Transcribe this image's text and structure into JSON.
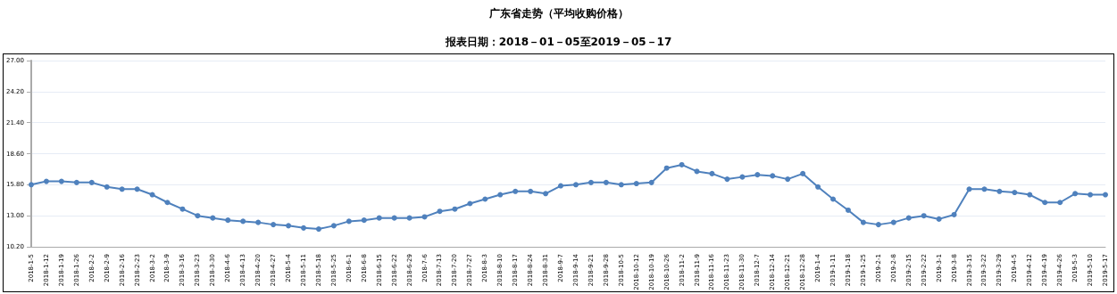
{
  "chart_data": {
    "type": "line",
    "title": "广东省走势（平均收购价格）",
    "subtitle": "报表日期：2018－01－05至2019－05－17",
    "categories": [
      "2018-1-5",
      "2018-1-12",
      "2018-1-19",
      "2018-1-26",
      "2018-2-2",
      "2018-2-9",
      "2018-2-16",
      "2018-2-23",
      "2018-3-2",
      "2018-3-9",
      "2018-3-16",
      "2018-3-23",
      "2018-3-30",
      "2018-4-6",
      "2018-4-13",
      "2018-4-20",
      "2018-4-27",
      "2018-5-4",
      "2018-5-11",
      "2018-5-18",
      "2018-5-25",
      "2018-6-1",
      "2018-6-8",
      "2018-6-15",
      "2018-6-22",
      "2018-6-29",
      "2018-7-6",
      "2018-7-13",
      "2018-7-20",
      "2018-7-27",
      "2018-8-3",
      "2018-8-10",
      "2018-8-17",
      "2018-8-24",
      "2018-8-31",
      "2018-9-7",
      "2018-9-14",
      "2018-9-21",
      "2018-9-28",
      "2018-10-5",
      "2018-10-12",
      "2018-10-19",
      "2018-10-26",
      "2018-11-2",
      "2018-11-9",
      "2018-11-16",
      "2018-11-23",
      "2018-11-30",
      "2018-12-7",
      "2018-12-14",
      "2018-12-21",
      "2018-12-28",
      "2019-1-4",
      "2019-1-11",
      "2019-1-18",
      "2019-1-25",
      "2019-2-1",
      "2019-2-8",
      "2019-2-15",
      "2019-2-22",
      "2019-3-1",
      "2019-3-8",
      "2019-3-15",
      "2019-3-22",
      "2019-3-29",
      "2019-4-5",
      "2019-4-12",
      "2019-4-19",
      "2019-4-26",
      "2019-5-3",
      "2019-5-10",
      "2019-5-17"
    ],
    "series": [
      {
        "color": "#4f81bd",
        "values": [
          15.8,
          16.1,
          16.1,
          16.0,
          16.0,
          15.6,
          15.4,
          15.4,
          14.9,
          14.2,
          13.6,
          13.0,
          12.8,
          12.6,
          12.5,
          12.4,
          12.2,
          12.1,
          11.9,
          11.8,
          12.1,
          12.5,
          12.6,
          12.8,
          12.8,
          12.8,
          12.9,
          13.4,
          13.6,
          14.1,
          14.5,
          14.9,
          15.2,
          15.2,
          15.0,
          15.7,
          15.8,
          16.0,
          16.0,
          15.8,
          15.9,
          16.0,
          17.3,
          17.6,
          17.0,
          16.8,
          16.3,
          16.5,
          16.7,
          16.6,
          16.3,
          16.8,
          15.6,
          14.5,
          13.5,
          12.4,
          12.2,
          12.4,
          12.8,
          13.0,
          12.7,
          13.1,
          15.4,
          15.4,
          15.2,
          15.1,
          14.9,
          14.2,
          14.2,
          15.0,
          14.9,
          14.9
        ]
      }
    ],
    "ylim": [
      10.2,
      27
    ],
    "yticks": [
      {
        "value": 10.2,
        "label": "10.20"
      },
      {
        "value": 13,
        "label": "13.00"
      },
      {
        "value": 15.8,
        "label": "15.80"
      },
      {
        "value": 18.6,
        "label": "18.60"
      },
      {
        "value": 21.4,
        "label": "21.40"
      },
      {
        "value": 24.2,
        "label": "24.20"
      },
      {
        "value": 27,
        "label": "27.00"
      }
    ],
    "grid": "y",
    "marker": "circle",
    "line_style": "solid"
  }
}
